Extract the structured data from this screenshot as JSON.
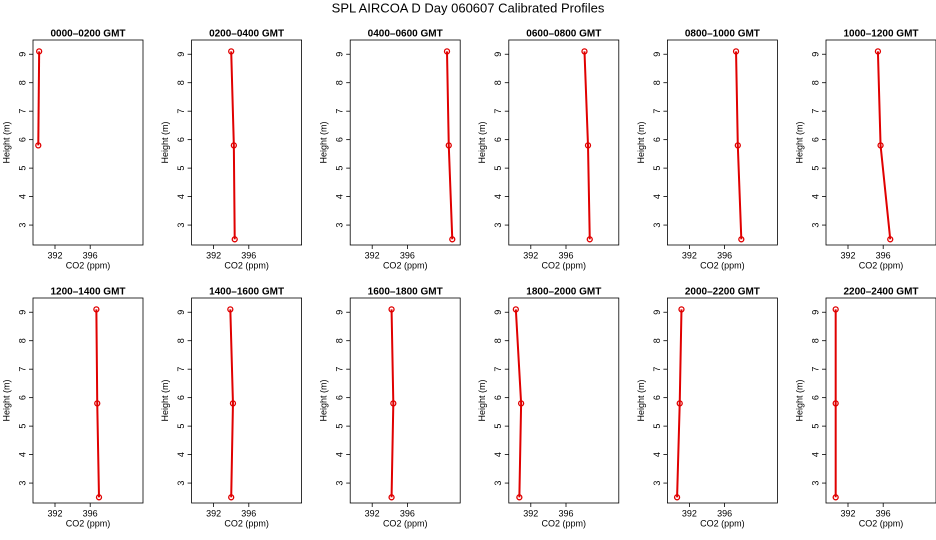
{
  "title": "SPL AIRCOA D  Day 060607  Calibrated Profiles",
  "chart_data": [
    {
      "type": "line",
      "title": "0000–0200 GMT",
      "xlabel": "CO2 (ppm)",
      "ylabel": "Height (m)",
      "color": "#e00000",
      "x": [
        390.2,
        390.1
      ],
      "values": [
        9.1,
        5.8
      ],
      "xlim": [
        389.5,
        402
      ],
      "ylim": [
        2.3,
        9.5
      ],
      "xticks": [
        392,
        396
      ],
      "yticks": [
        3,
        4,
        5,
        6,
        7,
        8,
        9
      ]
    },
    {
      "type": "line",
      "title": "0200–0400 GMT",
      "xlabel": "CO2 (ppm)",
      "ylabel": "Height (m)",
      "color": "#e00000",
      "x": [
        394.0,
        394.3,
        394.4
      ],
      "values": [
        9.1,
        5.8,
        2.5
      ],
      "xlim": [
        389.5,
        402
      ],
      "ylim": [
        2.3,
        9.5
      ],
      "xticks": [
        392,
        396
      ],
      "yticks": [
        3,
        4,
        5,
        6,
        7,
        8,
        9
      ]
    },
    {
      "type": "line",
      "title": "0400–0600 GMT",
      "xlabel": "CO2 (ppm)",
      "ylabel": "Height (m)",
      "color": "#e00000",
      "x": [
        400.5,
        400.7,
        401.1
      ],
      "values": [
        9.1,
        5.8,
        2.5
      ],
      "xlim": [
        389.5,
        402
      ],
      "ylim": [
        2.3,
        9.5
      ],
      "xticks": [
        392,
        396
      ],
      "yticks": [
        3,
        4,
        5,
        6,
        7,
        8,
        9
      ]
    },
    {
      "type": "line",
      "title": "0600–0800 GMT",
      "xlabel": "CO2 (ppm)",
      "ylabel": "Height (m)",
      "color": "#e00000",
      "x": [
        398.1,
        398.5,
        398.7
      ],
      "values": [
        9.1,
        5.8,
        2.5
      ],
      "xlim": [
        389.5,
        402
      ],
      "ylim": [
        2.3,
        9.5
      ],
      "xticks": [
        392,
        396
      ],
      "yticks": [
        3,
        4,
        5,
        6,
        7,
        8,
        9
      ]
    },
    {
      "type": "line",
      "title": "0800–1000 GMT",
      "xlabel": "CO2 (ppm)",
      "ylabel": "Height (m)",
      "color": "#e00000",
      "x": [
        397.3,
        397.5,
        397.9
      ],
      "values": [
        9.1,
        5.8,
        2.5
      ],
      "xlim": [
        389.5,
        402
      ],
      "ylim": [
        2.3,
        9.5
      ],
      "xticks": [
        392,
        396
      ],
      "yticks": [
        3,
        4,
        5,
        6,
        7,
        8,
        9
      ]
    },
    {
      "type": "line",
      "title": "1000–1200 GMT",
      "xlabel": "CO2 (ppm)",
      "ylabel": "Height (m)",
      "color": "#e00000",
      "x": [
        395.4,
        395.7,
        396.8
      ],
      "values": [
        9.1,
        5.8,
        2.5
      ],
      "xlim": [
        389.5,
        402
      ],
      "ylim": [
        2.3,
        9.5
      ],
      "xticks": [
        392,
        396
      ],
      "yticks": [
        3,
        4,
        5,
        6,
        7,
        8,
        9
      ]
    },
    {
      "type": "line",
      "title": "1200–1400 GMT",
      "xlabel": "CO2 (ppm)",
      "ylabel": "Height (m)",
      "color": "#e00000",
      "x": [
        396.7,
        396.8,
        397.0
      ],
      "values": [
        9.1,
        5.8,
        2.5
      ],
      "xlim": [
        389.5,
        402
      ],
      "ylim": [
        2.3,
        9.5
      ],
      "xticks": [
        392,
        396
      ],
      "yticks": [
        3,
        4,
        5,
        6,
        7,
        8,
        9
      ]
    },
    {
      "type": "line",
      "title": "1400–1600 GMT",
      "xlabel": "CO2 (ppm)",
      "ylabel": "Height (m)",
      "color": "#e00000",
      "x": [
        393.9,
        394.2,
        394.0
      ],
      "values": [
        9.1,
        5.8,
        2.5
      ],
      "xlim": [
        389.5,
        402
      ],
      "ylim": [
        2.3,
        9.5
      ],
      "xticks": [
        392,
        396
      ],
      "yticks": [
        3,
        4,
        5,
        6,
        7,
        8,
        9
      ]
    },
    {
      "type": "line",
      "title": "1600–1800 GMT",
      "xlabel": "CO2 (ppm)",
      "ylabel": "Height (m)",
      "color": "#e00000",
      "x": [
        394.2,
        394.4,
        394.2
      ],
      "values": [
        9.1,
        5.8,
        2.5
      ],
      "xlim": [
        389.5,
        402
      ],
      "ylim": [
        2.3,
        9.5
      ],
      "xticks": [
        392,
        396
      ],
      "yticks": [
        3,
        4,
        5,
        6,
        7,
        8,
        9
      ]
    },
    {
      "type": "line",
      "title": "1800–2000 GMT",
      "xlabel": "CO2 (ppm)",
      "ylabel": "Height (m)",
      "color": "#e00000",
      "x": [
        390.3,
        390.9,
        390.7
      ],
      "values": [
        9.1,
        5.8,
        2.5
      ],
      "xlim": [
        389.5,
        402
      ],
      "ylim": [
        2.3,
        9.5
      ],
      "xticks": [
        392,
        396
      ],
      "yticks": [
        3,
        4,
        5,
        6,
        7,
        8,
        9
      ]
    },
    {
      "type": "line",
      "title": "2000–2200 GMT",
      "xlabel": "CO2 (ppm)",
      "ylabel": "Height (m)",
      "color": "#e00000",
      "x": [
        391.1,
        390.9,
        390.6
      ],
      "values": [
        9.1,
        5.8,
        2.5
      ],
      "xlim": [
        389.5,
        402
      ],
      "ylim": [
        2.3,
        9.5
      ],
      "xticks": [
        392,
        396
      ],
      "yticks": [
        3,
        4,
        5,
        6,
        7,
        8,
        9
      ]
    },
    {
      "type": "line",
      "title": "2200–2400 GMT",
      "xlabel": "CO2 (ppm)",
      "ylabel": "Height (m)",
      "color": "#e00000",
      "x": [
        390.6,
        390.6,
        390.6
      ],
      "values": [
        9.1,
        5.8,
        2.5
      ],
      "xlim": [
        389.5,
        402
      ],
      "ylim": [
        2.3,
        9.5
      ],
      "xticks": [
        392,
        396
      ],
      "yticks": [
        3,
        4,
        5,
        6,
        7,
        8,
        9
      ]
    }
  ]
}
